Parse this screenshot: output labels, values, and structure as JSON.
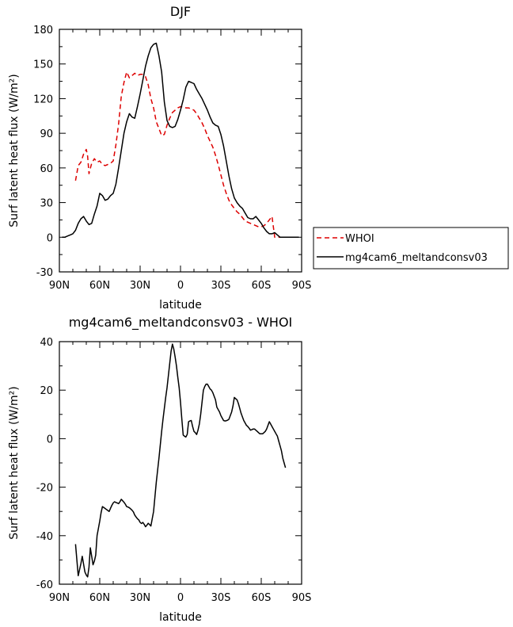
{
  "chart_data": [
    {
      "type": "line",
      "title": "DJF",
      "xlabel": "latitude",
      "ylabel": "Surf latent heat flux (W/m²)",
      "xlim": [
        90,
        -90
      ],
      "ylim": [
        -30,
        180
      ],
      "x_ticks": [
        90,
        60,
        30,
        0,
        -30,
        -60,
        -90
      ],
      "x_tick_labels": [
        "90N",
        "60N",
        "30N",
        "0",
        "30S",
        "60S",
        "90S"
      ],
      "y_ticks": [
        -30,
        0,
        30,
        60,
        90,
        120,
        150,
        180
      ],
      "y_tick_labels": [
        "-30",
        "0",
        "30",
        "60",
        "90",
        "120",
        "150",
        "180"
      ],
      "legend_position": "right",
      "series": [
        {
          "name": "WHOI",
          "color": "#dd0000",
          "dash": "dashed",
          "x": [
            78,
            76,
            74,
            72,
            70,
            69,
            68,
            66,
            64,
            62,
            60,
            58,
            56,
            54,
            52,
            50,
            48,
            46,
            44,
            42,
            40,
            38,
            36,
            34,
            32,
            30,
            28,
            26,
            24,
            22,
            20,
            18,
            16,
            14,
            12,
            10,
            8,
            6,
            4,
            2,
            0,
            -2,
            -4,
            -6,
            -8,
            -10,
            -12,
            -14,
            -16,
            -18,
            -20,
            -22,
            -24,
            -26,
            -28,
            -30,
            -32,
            -34,
            -36,
            -38,
            -40,
            -42,
            -44,
            -46,
            -48,
            -50,
            -52,
            -54,
            -56,
            -58,
            -60,
            -62,
            -64,
            -66,
            -68,
            -70,
            -72,
            -74,
            -76,
            -78
          ],
          "y": [
            49,
            62,
            65,
            72,
            76,
            70,
            55,
            64,
            68,
            65,
            66,
            63,
            62,
            63,
            64,
            66,
            80,
            98,
            122,
            134,
            143,
            138,
            140,
            142,
            140,
            141,
            141,
            139,
            132,
            120,
            112,
            100,
            94,
            88,
            89,
            97,
            103,
            108,
            110,
            112,
            113,
            113,
            112,
            112,
            111,
            110,
            107,
            103,
            99,
            94,
            88,
            83,
            78,
            71,
            63,
            54,
            45,
            38,
            32,
            28,
            25,
            22,
            20,
            17,
            14,
            13,
            12,
            11,
            10,
            9,
            9,
            10,
            12,
            15,
            18,
            0,
            0,
            0,
            0,
            0
          ]
        },
        {
          "name": "mg4cam6_meltandconsv03",
          "color": "#000000",
          "dash": "solid",
          "x": [
            88,
            86,
            84,
            82,
            80,
            78,
            76,
            74,
            72,
            70,
            68,
            66,
            64,
            62,
            60,
            58,
            56,
            54,
            52,
            50,
            48,
            46,
            44,
            42,
            40,
            38,
            36,
            34,
            32,
            30,
            28,
            26,
            24,
            22,
            20,
            18,
            16,
            14,
            12,
            10,
            8,
            6,
            4,
            2,
            0,
            -2,
            -4,
            -6,
            -8,
            -10,
            -12,
            -14,
            -16,
            -18,
            -20,
            -22,
            -24,
            -26,
            -28,
            -30,
            -32,
            -34,
            -36,
            -38,
            -40,
            -42,
            -44,
            -46,
            -48,
            -50,
            -52,
            -54,
            -56,
            -58,
            -60,
            -62,
            -64,
            -66,
            -68,
            -70,
            -72,
            -74,
            -76,
            -78,
            -80,
            -82,
            -84,
            -86,
            -88
          ],
          "y": [
            0,
            0,
            1,
            2,
            3,
            6,
            12,
            16,
            18,
            14,
            11,
            12,
            20,
            27,
            38,
            36,
            32,
            33,
            36,
            38,
            46,
            60,
            75,
            90,
            100,
            107,
            104,
            103,
            113,
            124,
            136,
            148,
            157,
            164,
            167,
            168,
            157,
            143,
            117,
            101,
            96,
            95,
            96,
            102,
            110,
            119,
            130,
            135,
            134,
            133,
            128,
            124,
            120,
            115,
            110,
            104,
            99,
            97,
            96,
            89,
            79,
            66,
            53,
            42,
            34,
            30,
            27,
            25,
            21,
            17,
            16,
            16,
            18,
            15,
            12,
            8,
            5,
            3,
            3,
            4,
            2,
            0,
            0,
            0,
            0,
            0,
            0,
            0,
            0
          ]
        }
      ]
    },
    {
      "type": "line",
      "title": "mg4cam6_meltandconsv03 - WHOI",
      "xlabel": "latitude",
      "ylabel": "Surf latent heat flux (W/m²)",
      "xlim": [
        90,
        -90
      ],
      "ylim": [
        -60,
        40
      ],
      "x_ticks": [
        90,
        60,
        30,
        0,
        -30,
        -60,
        -90
      ],
      "x_tick_labels": [
        "90N",
        "60N",
        "30N",
        "0",
        "30S",
        "60S",
        "90S"
      ],
      "y_ticks": [
        -60,
        -40,
        -20,
        0,
        20,
        40
      ],
      "y_tick_labels": [
        "-60",
        "-40",
        "-20",
        "0",
        "20",
        "40"
      ],
      "series": [
        {
          "color": "#000000",
          "dash": "solid",
          "x": [
            78,
            77,
            76,
            75,
            74,
            73,
            72,
            71,
            70,
            69,
            68,
            67,
            66,
            65,
            64,
            63,
            62,
            61,
            60,
            59,
            58,
            57,
            56,
            55,
            54,
            53,
            52,
            51,
            50,
            49,
            48,
            47,
            46,
            45,
            44,
            43,
            42,
            41,
            40,
            39,
            38,
            37,
            36,
            35,
            34,
            33,
            32,
            31,
            30,
            29,
            28,
            27,
            26,
            25,
            24,
            23,
            22,
            21,
            20,
            19,
            18,
            17,
            16,
            15,
            14,
            13,
            12,
            11,
            10,
            9,
            8,
            7,
            6,
            5,
            4,
            3,
            2,
            1,
            0,
            -1,
            -2,
            -3,
            -4,
            -5,
            -6,
            -7,
            -8,
            -9,
            -10,
            -11,
            -12,
            -13,
            -14,
            -15,
            -16,
            -17,
            -18,
            -19,
            -20,
            -21,
            -22,
            -23,
            -24,
            -25,
            -26,
            -27,
            -28,
            -29,
            -30,
            -31,
            -32,
            -33,
            -34,
            -35,
            -36,
            -37,
            -38,
            -39,
            -40,
            -41,
            -42,
            -43,
            -44,
            -45,
            -46,
            -47,
            -48,
            -49,
            -50,
            -51,
            -52,
            -53,
            -54,
            -55,
            -56,
            -57,
            -58,
            -59,
            -60,
            -61,
            -62,
            -63,
            -64,
            -65,
            -66,
            -67,
            -68,
            -69,
            -70,
            -71,
            -72,
            -73,
            -74,
            -75,
            -76,
            -77,
            -78
          ],
          "y": [
            -43.5,
            -50,
            -56.5,
            -54,
            -51.5,
            -48.5,
            -51.8,
            -55,
            -56.2,
            -57,
            -53,
            -45,
            -48.5,
            -52,
            -50.5,
            -48,
            -40,
            -37,
            -34,
            -30.5,
            -28,
            -28.4,
            -28.8,
            -29.2,
            -29.6,
            -30,
            -28.7,
            -27.5,
            -26.5,
            -26,
            -26.3,
            -26.5,
            -26.8,
            -26,
            -25,
            -25.6,
            -26.2,
            -27,
            -28,
            -28.2,
            -28.5,
            -29,
            -29.5,
            -30.2,
            -31.5,
            -32.3,
            -33,
            -33.5,
            -34.5,
            -35,
            -34.5,
            -35.3,
            -36.3,
            -35.7,
            -34.9,
            -35.4,
            -36,
            -33,
            -30,
            -24,
            -18,
            -13,
            -8,
            -2.5,
            3,
            8,
            12.5,
            17,
            21,
            26,
            31,
            36,
            39,
            37,
            33.7,
            30,
            25.3,
            21,
            15,
            8,
            1.5,
            1,
            0.7,
            1.8,
            7,
            7.3,
            7.5,
            5,
            3,
            2.5,
            1.7,
            3.5,
            6,
            10,
            15,
            20,
            21.5,
            22.5,
            22.5,
            21.5,
            20.5,
            20,
            19,
            17.5,
            16,
            13,
            12,
            11,
            9.5,
            8.5,
            7.5,
            7.3,
            7.4,
            7.6,
            8,
            9.5,
            11,
            13.5,
            17,
            16.5,
            16,
            14.5,
            12.5,
            10.5,
            9,
            7.5,
            6.5,
            5.5,
            5,
            4.3,
            3.5,
            3.7,
            4,
            4,
            3.5,
            3,
            2.5,
            2,
            2,
            2,
            2.5,
            3,
            4,
            5.5,
            7,
            6,
            5,
            4,
            3,
            2,
            1,
            -1,
            -3,
            -5,
            -8,
            -10,
            -12
          ]
        }
      ]
    }
  ]
}
